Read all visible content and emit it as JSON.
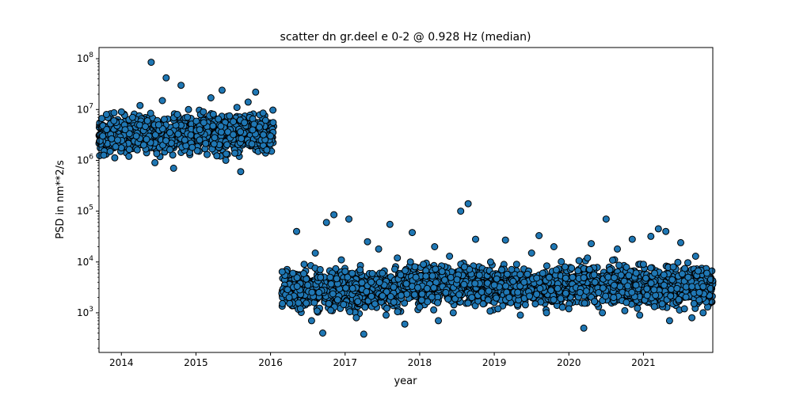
{
  "chart_data": {
    "type": "scatter",
    "title": "scatter dn gr.deel e 0-2 @ 0.928 Hz (median)",
    "xlabel": "year",
    "ylabel": "PSD in nm**2/s",
    "x_unit": "year",
    "y_scale": "log",
    "xlim": [
      2013.7,
      2021.93
    ],
    "ylim_exponent": [
      2.22,
      8.22
    ],
    "x_ticks": [
      {
        "value": 2014,
        "label": "2014"
      },
      {
        "value": 2015,
        "label": "2015"
      },
      {
        "value": 2016,
        "label": "2016"
      },
      {
        "value": 2017,
        "label": "2017"
      },
      {
        "value": 2018,
        "label": "2018"
      },
      {
        "value": 2019,
        "label": "2019"
      },
      {
        "value": 2020,
        "label": "2020"
      },
      {
        "value": 2021,
        "label": "2021"
      }
    ],
    "y_ticks": [
      {
        "exponent": 3,
        "base": "10",
        "label_exp": "3"
      },
      {
        "exponent": 4,
        "base": "10",
        "label_exp": "4"
      },
      {
        "exponent": 5,
        "base": "10",
        "label_exp": "5"
      },
      {
        "exponent": 6,
        "base": "10",
        "label_exp": "6"
      },
      {
        "exponent": 7,
        "base": "10",
        "label_exp": "7"
      },
      {
        "exponent": 8,
        "base": "10",
        "label_exp": "8"
      }
    ],
    "marker_fill": "#1f77b4",
    "marker_edge": "#000000",
    "grid": false,
    "legend": "none",
    "series": [
      {
        "points": [
          [
            2013.75,
            3000000
          ],
          [
            2013.8,
            8000000
          ],
          [
            2013.85,
            1500000
          ],
          [
            2013.9,
            6000000
          ],
          [
            2013.95,
            2500000
          ],
          [
            2014.0,
            9000000
          ],
          [
            2014.05,
            4000000
          ],
          [
            2014.1,
            1200000
          ],
          [
            2014.15,
            7000000
          ],
          [
            2014.2,
            3000000
          ],
          [
            2014.25,
            12000000
          ],
          [
            2014.3,
            2000000
          ],
          [
            2014.35,
            6000000
          ],
          [
            2014.4,
            85000000
          ],
          [
            2014.45,
            900000
          ],
          [
            2014.5,
            5000000
          ],
          [
            2014.55,
            15000000
          ],
          [
            2014.6,
            42000000
          ],
          [
            2014.65,
            3500000
          ],
          [
            2014.7,
            700000
          ],
          [
            2014.75,
            8000000
          ],
          [
            2014.8,
            30000000
          ],
          [
            2014.85,
            2500000
          ],
          [
            2014.9,
            10000000
          ],
          [
            2014.95,
            1800000
          ],
          [
            2015.05,
            4000000
          ],
          [
            2015.1,
            9000000
          ],
          [
            2015.15,
            1300000
          ],
          [
            2015.2,
            17000000
          ],
          [
            2015.25,
            2800000
          ],
          [
            2015.3,
            6500000
          ],
          [
            2015.35,
            24000000
          ],
          [
            2015.4,
            1000000
          ],
          [
            2015.45,
            7500000
          ],
          [
            2015.5,
            3200000
          ],
          [
            2015.55,
            11000000
          ],
          [
            2015.6,
            600000
          ],
          [
            2015.65,
            5500000
          ],
          [
            2015.7,
            14000000
          ],
          [
            2015.75,
            2100000
          ],
          [
            2015.8,
            22000000
          ],
          [
            2015.85,
            4500000
          ],
          [
            2015.9,
            8500000
          ],
          [
            2015.95,
            1600000
          ],
          [
            2016.0,
            3000000
          ],
          [
            2016.25,
            2000
          ],
          [
            2016.3,
            6000
          ],
          [
            2016.35,
            40000
          ],
          [
            2016.4,
            1200
          ],
          [
            2016.45,
            9000
          ],
          [
            2016.5,
            3500
          ],
          [
            2016.55,
            700
          ],
          [
            2016.6,
            15000
          ],
          [
            2016.65,
            2500
          ],
          [
            2016.7,
            400
          ],
          [
            2016.75,
            60000
          ],
          [
            2016.8,
            5000
          ],
          [
            2016.85,
            85000
          ],
          [
            2016.9,
            1800
          ],
          [
            2016.95,
            11000
          ],
          [
            2017.05,
            70000
          ],
          [
            2017.1,
            3000
          ],
          [
            2017.15,
            800
          ],
          [
            2017.2,
            7000
          ],
          [
            2017.25,
            380
          ],
          [
            2017.3,
            25000
          ],
          [
            2017.35,
            4000
          ],
          [
            2017.4,
            1500
          ],
          [
            2017.45,
            18000
          ],
          [
            2017.5,
            6000
          ],
          [
            2017.55,
            900
          ],
          [
            2017.6,
            55000
          ],
          [
            2017.65,
            3200
          ],
          [
            2017.7,
            12000
          ],
          [
            2017.75,
            2200
          ],
          [
            2017.8,
            600
          ],
          [
            2017.9,
            38000
          ],
          [
            2017.95,
            5000
          ],
          [
            2018.0,
            1300
          ],
          [
            2018.05,
            9000
          ],
          [
            2018.1,
            3000
          ],
          [
            2018.2,
            20000
          ],
          [
            2018.25,
            700
          ],
          [
            2018.3,
            6500
          ],
          [
            2018.35,
            2500
          ],
          [
            2018.4,
            13000
          ],
          [
            2018.45,
            1000
          ],
          [
            2018.5,
            4500
          ],
          [
            2018.55,
            100000
          ],
          [
            2018.6,
            8000
          ],
          [
            2018.65,
            140000
          ],
          [
            2018.7,
            2000
          ],
          [
            2018.75,
            28000
          ],
          [
            2018.8,
            5500
          ],
          [
            2018.85,
            1500
          ],
          [
            2018.95,
            10000
          ],
          [
            2019.0,
            3500
          ],
          [
            2019.05,
            1200
          ],
          [
            2019.1,
            7000
          ],
          [
            2019.15,
            27000
          ],
          [
            2019.2,
            2000
          ],
          [
            2019.3,
            9000
          ],
          [
            2019.35,
            900
          ],
          [
            2019.4,
            4000
          ],
          [
            2019.5,
            15000
          ],
          [
            2019.55,
            1500
          ],
          [
            2019.6,
            33000
          ],
          [
            2019.65,
            6000
          ],
          [
            2019.7,
            1000
          ],
          [
            2019.8,
            20000
          ],
          [
            2019.85,
            3000
          ],
          [
            2019.95,
            8000
          ],
          [
            2020.0,
            1200
          ],
          [
            2020.05,
            5000
          ],
          [
            2020.15,
            2500
          ],
          [
            2020.2,
            500
          ],
          [
            2020.25,
            12000
          ],
          [
            2020.3,
            23000
          ],
          [
            2020.35,
            4000
          ],
          [
            2020.45,
            1000
          ],
          [
            2020.5,
            70000
          ],
          [
            2020.55,
            7000
          ],
          [
            2020.6,
            2000
          ],
          [
            2020.65,
            18000
          ],
          [
            2020.7,
            5500
          ],
          [
            2020.75,
            1100
          ],
          [
            2020.85,
            28000
          ],
          [
            2020.9,
            3500
          ],
          [
            2020.95,
            900
          ],
          [
            2021.0,
            9000
          ],
          [
            2021.05,
            2200
          ],
          [
            2021.1,
            32000
          ],
          [
            2021.15,
            6000
          ],
          [
            2021.2,
            45000
          ],
          [
            2021.25,
            1500
          ],
          [
            2021.3,
            40000
          ],
          [
            2021.35,
            700
          ],
          [
            2021.4,
            8000
          ],
          [
            2021.45,
            3000
          ],
          [
            2021.5,
            24000
          ],
          [
            2021.55,
            1200
          ],
          [
            2021.6,
            5000
          ],
          [
            2021.65,
            800
          ],
          [
            2021.7,
            13000
          ],
          [
            2021.75,
            2500
          ],
          [
            2021.8,
            1000
          ],
          [
            2021.85,
            6000
          ],
          [
            2021.9,
            3000
          ]
        ]
      }
    ],
    "clusters": [
      {
        "x": [
          2013.7,
          2014.95
        ],
        "log_y": [
          6.0,
          7.05
        ]
      },
      {
        "x": [
          2015.0,
          2016.05
        ],
        "log_y": [
          6.0,
          7.05
        ]
      },
      {
        "x": [
          2016.15,
          2017.8
        ],
        "log_y": [
          2.9,
          4.0
        ]
      },
      {
        "x": [
          2017.8,
          2018.9
        ],
        "log_y": [
          3.0,
          4.1
        ]
      },
      {
        "x": [
          2018.9,
          2019.95
        ],
        "log_y": [
          3.0,
          4.05
        ]
      },
      {
        "x": [
          2019.95,
          2021.0
        ],
        "log_y": [
          3.0,
          4.1
        ]
      },
      {
        "x": [
          2021.0,
          2021.93
        ],
        "log_y": [
          2.95,
          4.1
        ]
      }
    ]
  }
}
